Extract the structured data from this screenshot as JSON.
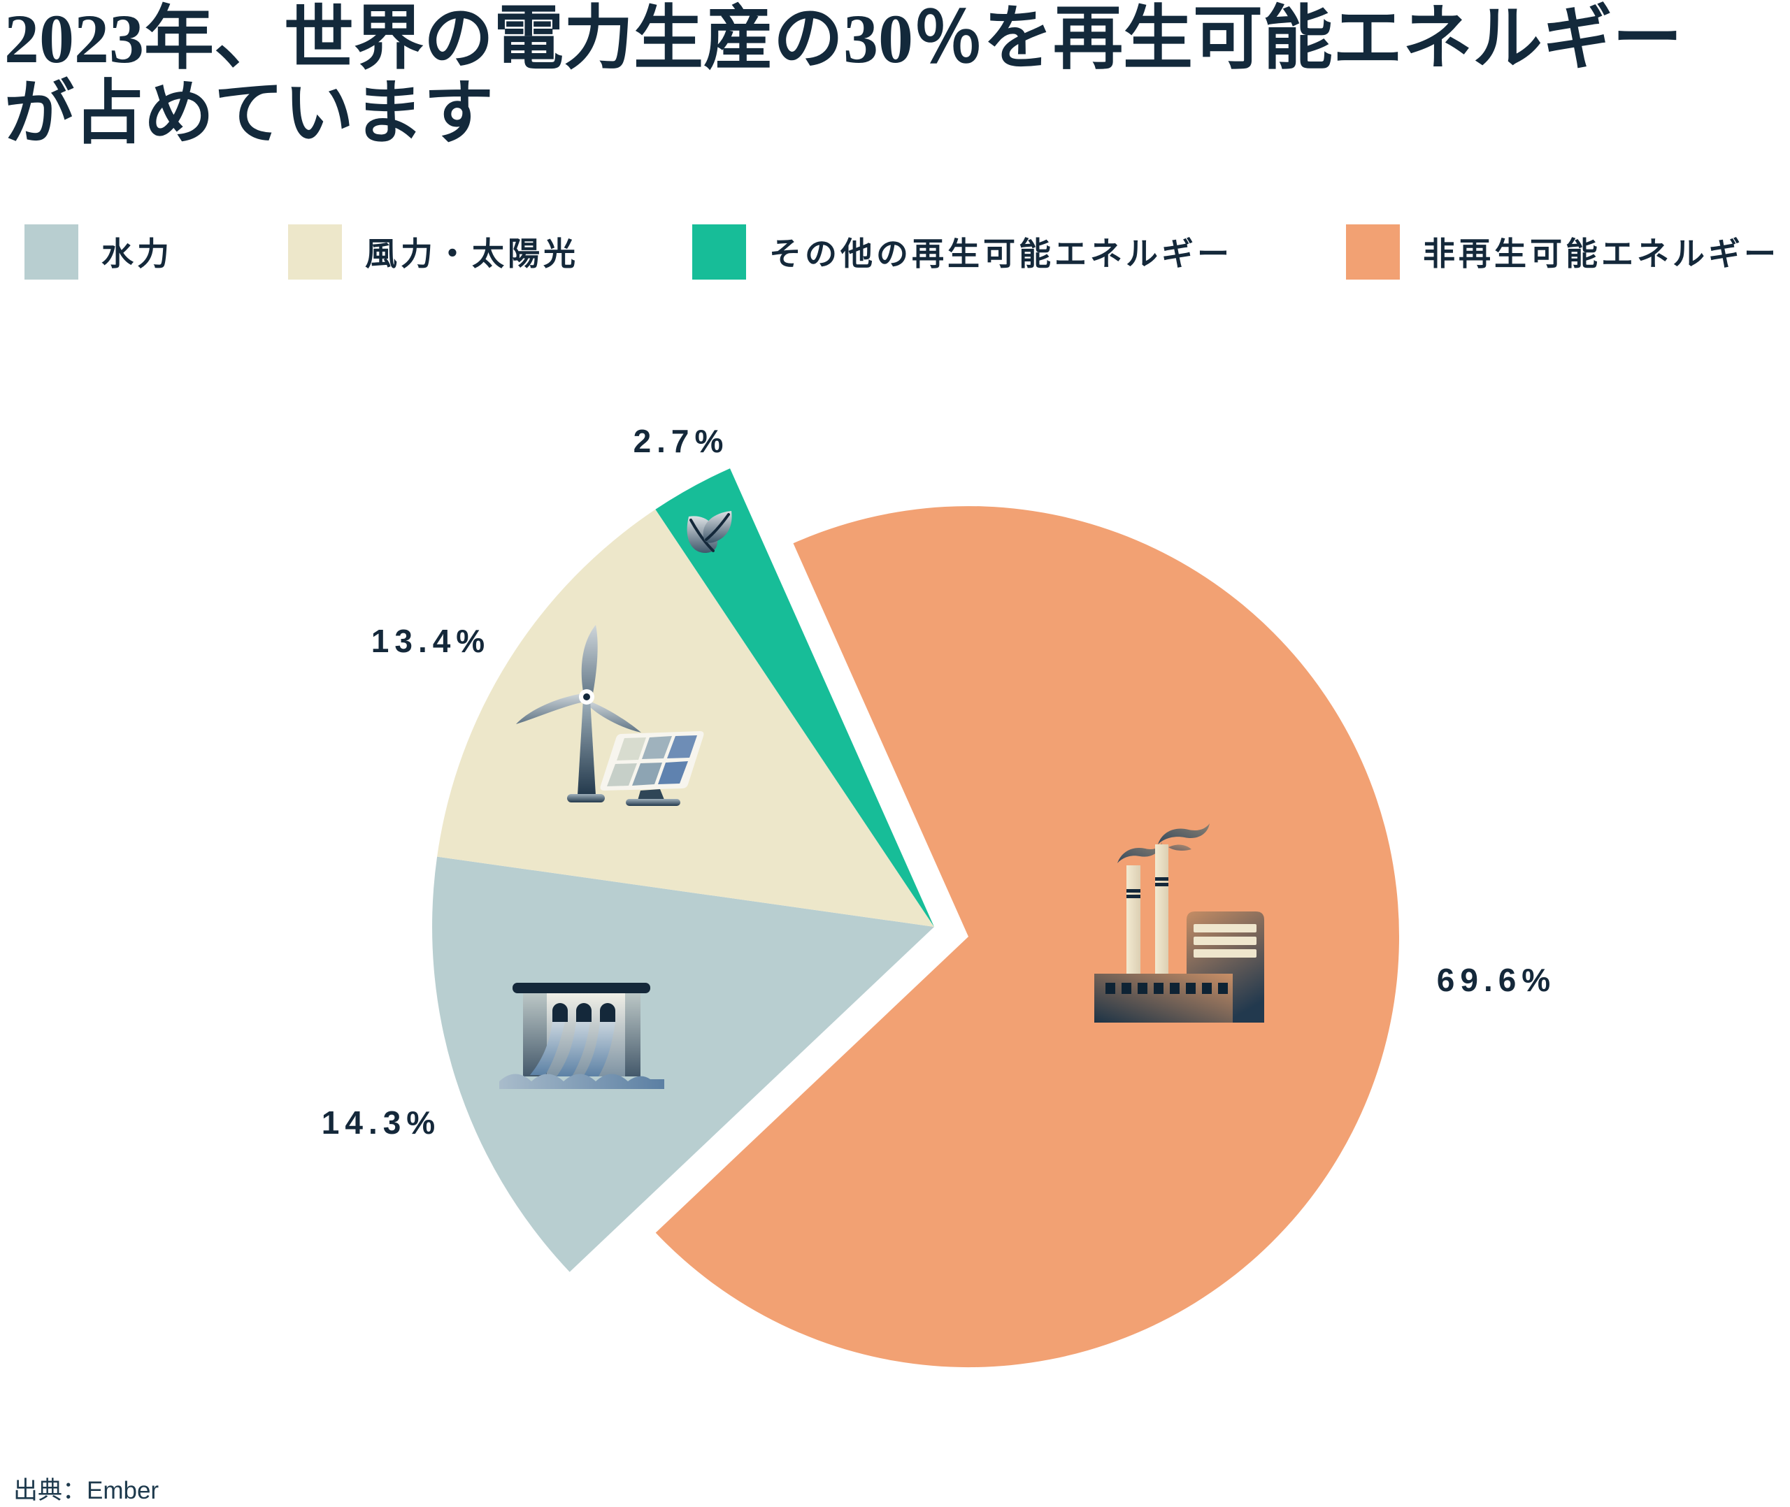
{
  "title": {
    "line1": "2023年、世界の電力生産の30％を再生可能エネルギー",
    "line2": "が占めています"
  },
  "legend": [
    {
      "label": "水力",
      "color": "#B8CED0"
    },
    {
      "label": "風力・太陽光",
      "color": "#EDE7CA"
    },
    {
      "label": "その他の再生可能エネルギー",
      "color": "#17BD98"
    },
    {
      "label": "非再生可能エネルギー",
      "color": "#F2A173"
    }
  ],
  "source": "出典：Ember",
  "chart_data": {
    "type": "pie",
    "title": "2023年、世界の電力生産の30％を再生可能エネルギーが占めています",
    "slices": [
      {
        "id": "non-renewable",
        "label": "非再生可能エネルギー",
        "value": 69.6,
        "display": "69.6%",
        "color": "#F2A173",
        "exploded": false,
        "icon": "factory-icon"
      },
      {
        "id": "hydro",
        "label": "水力",
        "value": 14.3,
        "display": "14.3%",
        "color": "#B8CED0",
        "exploded": true,
        "icon": "dam-icon"
      },
      {
        "id": "wind-solar",
        "label": "風力・太陽光",
        "value": 13.4,
        "display": "13.4%",
        "color": "#EDE7CA",
        "exploded": true,
        "icon": "wind-turbine-solar-panel-icon"
      },
      {
        "id": "other-renewables",
        "label": "その他の再生可能エネルギー",
        "value": 2.7,
        "display": "2.7%",
        "color": "#17BD98",
        "exploded": true,
        "icon": "leaf-icon"
      }
    ],
    "legend_position": "top",
    "direction": "clockwise",
    "layout": {
      "start_angle_deg": 336,
      "main_center": [
        1385,
        1340
      ],
      "main_radius": 616,
      "group_center": [
        1336,
        1326
      ],
      "group_radius": 718
    }
  }
}
